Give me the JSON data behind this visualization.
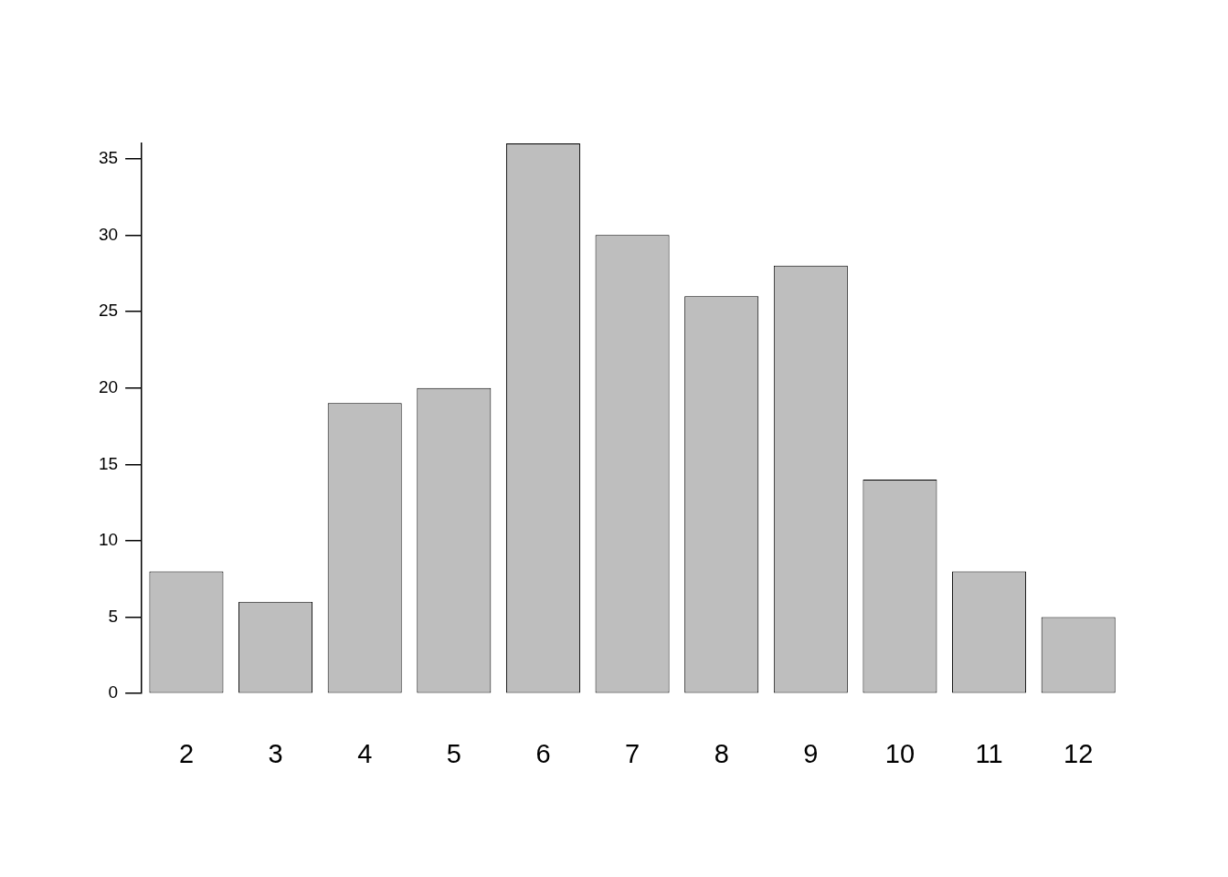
{
  "chart_data": {
    "type": "bar",
    "categories": [
      "2",
      "3",
      "4",
      "5",
      "6",
      "7",
      "8",
      "9",
      "10",
      "11",
      "12"
    ],
    "values": [
      8,
      6,
      19,
      20,
      36,
      30,
      26,
      28,
      14,
      8,
      5
    ],
    "color": "#bebebe",
    "ylim": [
      0,
      36
    ],
    "yticks": [
      0,
      5,
      10,
      15,
      20,
      25,
      30,
      35
    ]
  }
}
